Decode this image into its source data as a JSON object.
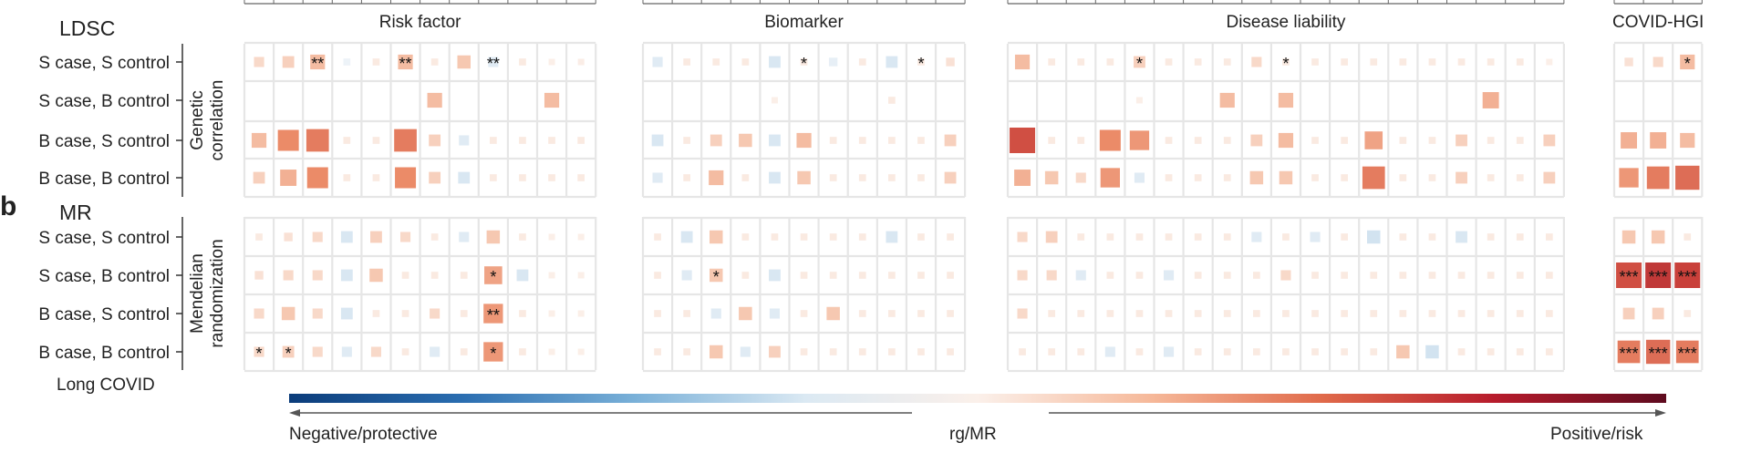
{
  "panels": {
    "ldsc_title": "LDSC",
    "mr_letter": "b",
    "mr_title": "MR",
    "ldsc_side": "Genetic\ncorrelation",
    "mr_side": "Mendelian\nrandomization",
    "long_covid": "Long COVID"
  },
  "groups": [
    {
      "label": "Risk factor",
      "cols": 12
    },
    {
      "label": "Biomarker",
      "cols": 11
    },
    {
      "label": "Disease liability",
      "cols": 19
    },
    {
      "label": "COVID-HGI",
      "cols": 3
    }
  ],
  "row_labels": [
    "S case, S control",
    "S case, B control",
    "B case, S control",
    "B case, B control"
  ],
  "colorbar": {
    "left_caption": "Negative/protective",
    "center_caption": "rg/MR",
    "right_caption": "Positive/risk",
    "colors": [
      "#0b3c7a",
      "#2a6db0",
      "#79b0d8",
      "#dbe9f3",
      "#fbf0ea",
      "#f6b99a",
      "#e06a4a",
      "#b71c2c",
      "#5e0b1f"
    ]
  },
  "chart_data": [
    {
      "type": "heatmap",
      "title": "LDSC",
      "y_axis_title": "Genetic correlation",
      "rows": [
        "S case, S control",
        "S case, B control",
        "B case, S control",
        "B case, B control"
      ],
      "column_groups": [
        "Risk factor",
        "Biomarker",
        "Disease liability",
        "COVID-HGI"
      ],
      "value_range": [
        -1,
        1
      ],
      "values": [
        [
          0.15,
          0.2,
          0.3,
          -0.05,
          0.05,
          0.3,
          0.05,
          0.25,
          -0.15,
          0.05,
          0.02,
          0.03,
          -0.15,
          0.05,
          0.05,
          0.05,
          -0.2,
          0.05,
          -0.1,
          0.05,
          -0.2,
          0.05,
          0.1,
          0.3,
          0.05,
          0.05,
          0.05,
          0.2,
          0.05,
          0.05,
          0.05,
          0.15,
          0.05,
          0.05,
          0.05,
          0.05,
          0.05,
          0.05,
          0.05,
          0.05,
          0.05,
          0.02,
          0.1,
          0.15,
          0.3
        ],
        [
          0,
          0,
          0,
          0,
          0,
          0,
          0.3,
          0,
          0,
          0,
          0.3,
          0,
          0,
          0,
          0,
          0,
          0.02,
          0,
          0,
          0,
          0.05,
          0,
          0,
          0,
          0,
          0,
          0,
          0.02,
          0,
          0,
          0.3,
          0,
          0.3,
          0,
          0,
          0,
          0,
          0,
          0,
          0.35,
          0,
          0,
          0,
          0,
          0
        ],
        [
          0.3,
          0.5,
          0.55,
          0.05,
          0.05,
          0.55,
          0.2,
          -0.15,
          0.05,
          0.05,
          0.05,
          0.05,
          -0.2,
          0.05,
          0.2,
          0.25,
          -0.2,
          0.3,
          0.05,
          0.05,
          0.05,
          0.05,
          0.2,
          0.7,
          0.05,
          0.05,
          0.5,
          0.45,
          0.05,
          0.05,
          0.05,
          0.2,
          0.3,
          0.05,
          0.05,
          0.4,
          0.05,
          0.05,
          0.2,
          0.05,
          0.05,
          0.2,
          0.35,
          0.35,
          0.3
        ],
        [
          0.2,
          0.35,
          0.5,
          0.05,
          0.05,
          0.5,
          0.2,
          -0.2,
          0.05,
          0.05,
          0.05,
          0.05,
          -0.15,
          0.05,
          0.3,
          0.05,
          -0.2,
          0.25,
          0.05,
          0.05,
          0.05,
          0.05,
          0.2,
          0.35,
          0.25,
          0.15,
          0.45,
          -0.15,
          0.05,
          0.05,
          0.05,
          0.25,
          0.25,
          0.05,
          0.05,
          0.55,
          0.05,
          0.05,
          0.2,
          0.05,
          0.05,
          0.2,
          0.45,
          0.55,
          0.6
        ]
      ],
      "significance": {
        "0": {
          "2": "**",
          "5": "**",
          "8": "**",
          "17": "*",
          "21": "*",
          "27": "*",
          "32": "*",
          "44": "*"
        }
      }
    },
    {
      "type": "heatmap",
      "title": "MR",
      "y_axis_title": "Mendelian randomization",
      "rows": [
        "S case, S control",
        "S case, B control",
        "B case, S control",
        "B case, B control"
      ],
      "column_groups": [
        "Risk factor",
        "Biomarker",
        "Disease liability",
        "COVID-HGI"
      ],
      "value_range": [
        -1,
        1
      ],
      "values": [
        [
          0.05,
          0.1,
          0.15,
          -0.2,
          0.2,
          0.15,
          0.05,
          -0.15,
          0.25,
          0.05,
          0.02,
          0.02,
          0.05,
          -0.2,
          0.25,
          0.05,
          0.05,
          0.05,
          0.05,
          0.05,
          -0.2,
          0.05,
          0.05,
          0.15,
          0.2,
          0.05,
          0.05,
          0.05,
          0.05,
          0.05,
          0.05,
          -0.15,
          0.05,
          -0.15,
          0.05,
          -0.25,
          0.05,
          0.05,
          -0.2,
          0.05,
          0.05,
          0.05,
          0.25,
          0.25,
          0.05
        ],
        [
          0.1,
          0.15,
          0.15,
          -0.2,
          0.25,
          0.05,
          0.05,
          0.05,
          0.4,
          -0.2,
          0.02,
          0.02,
          0.05,
          -0.15,
          0.25,
          0.05,
          -0.2,
          0.05,
          0.05,
          0.05,
          0.05,
          0.05,
          0.05,
          0.15,
          0.15,
          -0.15,
          0.05,
          0.05,
          -0.15,
          0.05,
          0.05,
          0.05,
          0.15,
          0.05,
          0.05,
          0.05,
          0.05,
          0.05,
          0.05,
          0.05,
          0.05,
          0.05,
          0.7,
          0.8,
          0.75
        ],
        [
          0.15,
          0.25,
          0.15,
          -0.2,
          0.05,
          0.05,
          0.15,
          0.05,
          0.45,
          0.05,
          0.02,
          0.02,
          0.05,
          0.05,
          -0.15,
          0.25,
          -0.15,
          0.05,
          0.25,
          0.05,
          0.05,
          0.05,
          0.05,
          0.15,
          0.05,
          0.05,
          0.05,
          0.05,
          0.05,
          0.05,
          0.05,
          0.05,
          0.05,
          0.05,
          0.05,
          0.05,
          0.05,
          0.05,
          0.05,
          0.05,
          0.05,
          0.05,
          0.2,
          0.2,
          0.05
        ],
        [
          0.15,
          0.2,
          0.15,
          -0.15,
          0.15,
          0.05,
          -0.15,
          0.05,
          0.45,
          0.05,
          0.02,
          0.02,
          0.05,
          0.05,
          0.25,
          -0.15,
          0.2,
          0.05,
          0.05,
          0.05,
          0.05,
          0.05,
          0.05,
          0.05,
          0.05,
          0.05,
          -0.15,
          0.05,
          -0.15,
          0.05,
          0.05,
          0.05,
          0.05,
          0.05,
          0.05,
          0.05,
          0.25,
          -0.25,
          0.05,
          0.05,
          0.05,
          0.05,
          0.55,
          0.6,
          0.55
        ]
      ],
      "significance": {
        "1": {
          "8": "*",
          "14": "*",
          "42": "***",
          "43": "***",
          "44": "***"
        },
        "2": {
          "8": "**"
        },
        "3": {
          "0": "*",
          "1": "*",
          "8": "*",
          "42": "***",
          "43": "***",
          "44": "***"
        }
      }
    }
  ]
}
